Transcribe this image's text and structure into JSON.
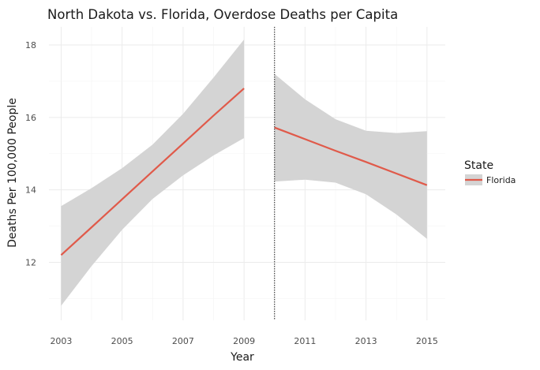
{
  "chart_data": {
    "type": "line",
    "title": "North Dakota vs. Florida, Overdose Deaths per Capita",
    "xlabel": "Year",
    "ylabel": "Deaths Per 100,000 People",
    "xlim": [
      2002.6,
      2015.6
    ],
    "ylim": [
      10.4,
      18.5
    ],
    "x_ticks": [
      2003,
      2005,
      2007,
      2009,
      2011,
      2013,
      2015
    ],
    "x_tick_labels": [
      "2003",
      "2005",
      "2007",
      "2009",
      "2011",
      "2013",
      "2015"
    ],
    "y_ticks": [
      12,
      14,
      16,
      18
    ],
    "y_tick_labels": [
      "12",
      "14",
      "16",
      "18"
    ],
    "grid": true,
    "cutoff_line": {
      "x": 2010,
      "style": "dotted"
    },
    "legend": {
      "title": "State",
      "placement": "right",
      "entries": [
        "Florida"
      ]
    },
    "colors": {
      "line": "#e05a4a",
      "ribbon": "#d4d4d4",
      "grid": "#ebebeb"
    },
    "series": [
      {
        "name": "Florida",
        "segments": [
          {
            "x": [
              2003,
              2004,
              2005,
              2006,
              2007,
              2008,
              2009
            ],
            "y": [
              12.2,
              12.97,
              13.74,
              14.51,
              15.28,
              16.05,
              16.8
            ],
            "upper": [
              13.55,
              14.05,
              14.6,
              15.25,
              16.1,
              17.1,
              18.15
            ],
            "lower": [
              10.8,
              11.9,
              12.9,
              13.75,
              14.4,
              14.95,
              15.43
            ]
          },
          {
            "x": [
              2010,
              2011,
              2012,
              2013,
              2014,
              2015
            ],
            "y": [
              15.72,
              15.4,
              15.08,
              14.77,
              14.45,
              14.13
            ],
            "upper": [
              17.2,
              16.5,
              15.95,
              15.63,
              15.57,
              15.62
            ],
            "lower": [
              14.23,
              14.28,
              14.2,
              13.88,
              13.32,
              12.65
            ]
          }
        ]
      }
    ]
  }
}
